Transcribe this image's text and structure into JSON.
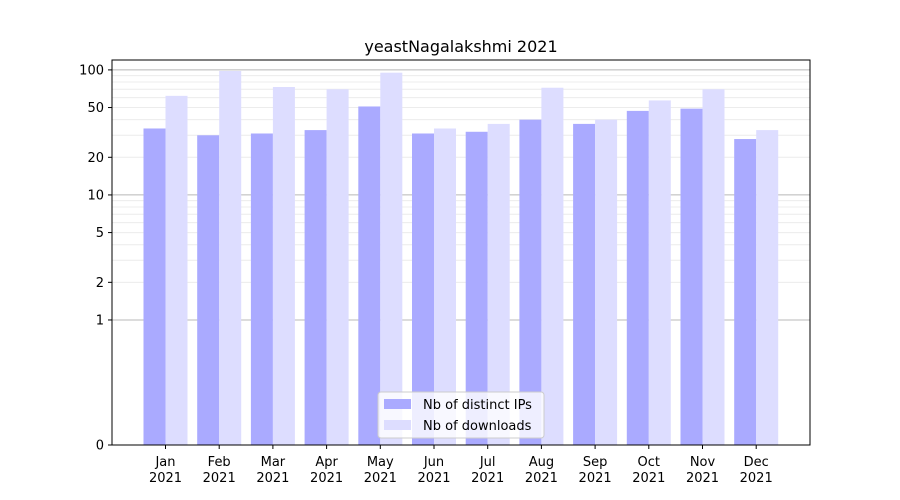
{
  "chart_data": {
    "type": "bar",
    "title": "yeastNagalakshmi 2021",
    "xlabel": "",
    "ylabel": "",
    "yscale": "symlog",
    "ylim": [
      0,
      120
    ],
    "yticks": [
      "0",
      "1",
      "2",
      "5",
      "10",
      "20",
      "50",
      "100"
    ],
    "categories": [
      {
        "month": "Jan",
        "year": "2021"
      },
      {
        "month": "Feb",
        "year": "2021"
      },
      {
        "month": "Mar",
        "year": "2021"
      },
      {
        "month": "Apr",
        "year": "2021"
      },
      {
        "month": "May",
        "year": "2021"
      },
      {
        "month": "Jun",
        "year": "2021"
      },
      {
        "month": "Jul",
        "year": "2021"
      },
      {
        "month": "Aug",
        "year": "2021"
      },
      {
        "month": "Sep",
        "year": "2021"
      },
      {
        "month": "Oct",
        "year": "2021"
      },
      {
        "month": "Nov",
        "year": "2021"
      },
      {
        "month": "Dec",
        "year": "2021"
      }
    ],
    "series": [
      {
        "name": "Nb of distinct IPs",
        "color": "#aaaaff",
        "values": [
          34,
          30,
          31,
          33,
          51,
          31,
          32,
          40,
          37,
          47,
          49,
          28
        ]
      },
      {
        "name": "Nb of downloads",
        "color": "#ddddff",
        "values": [
          62,
          98,
          73,
          70,
          95,
          34,
          37,
          72,
          40,
          57,
          70,
          33
        ]
      }
    ],
    "grid": true,
    "legend_position": "bottom-center"
  }
}
